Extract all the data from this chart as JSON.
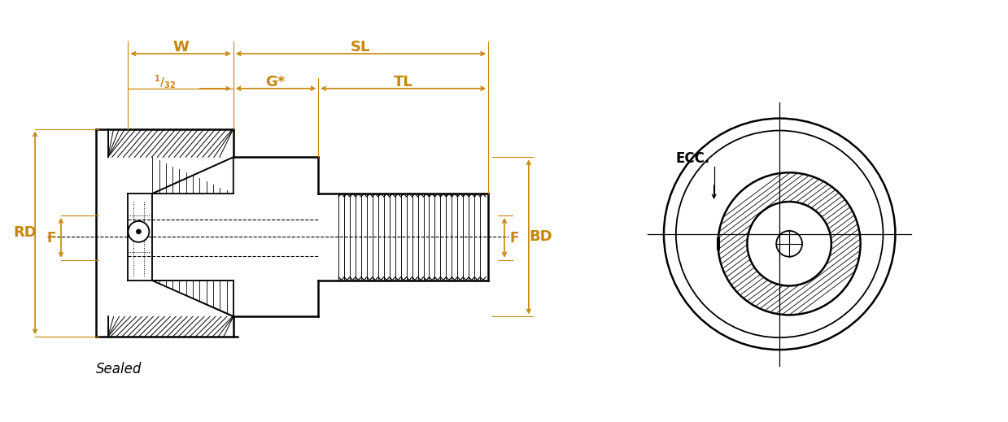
{
  "bg_color": "#ffffff",
  "line_color": "#000000",
  "dim_color": "#c8860a",
  "labels": {
    "W": "W",
    "SL": "SL",
    "G": "G*",
    "TL": "TL",
    "RD": "RD",
    "F_left": "F",
    "F_right": "F",
    "BD": "BD",
    "ECC": "ECC.",
    "Sealed": "Sealed"
  },
  "figsize": [
    12.39,
    5.19
  ],
  "dpi": 100
}
